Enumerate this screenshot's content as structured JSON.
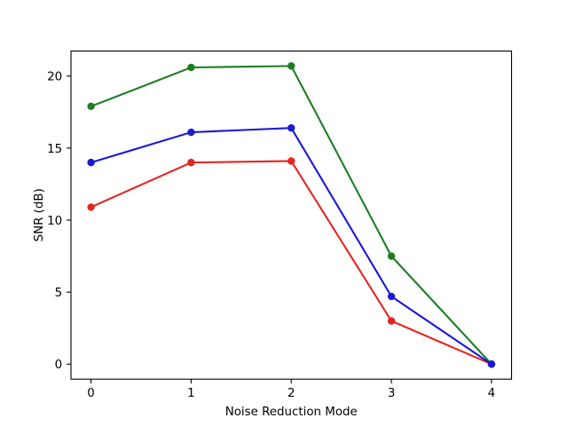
{
  "figure": {
    "background": "#ffffff"
  },
  "chart_data": {
    "type": "line",
    "title": "",
    "xlabel": "Noise Reduction Mode",
    "ylabel": "SNR (dB)",
    "x": [
      0,
      1,
      2,
      3,
      4
    ],
    "x_tick_labels": [
      "0",
      "1",
      "2",
      "3",
      "4"
    ],
    "y_ticks": [
      0,
      5,
      10,
      15,
      20
    ],
    "y_tick_labels": [
      "0",
      "5",
      "10",
      "15",
      "20"
    ],
    "xlim": [
      -0.2,
      4.2
    ],
    "ylim": [
      -1.04,
      21.74
    ],
    "grid": false,
    "legend": "none",
    "marker": "circle",
    "series": [
      {
        "name": "red-series",
        "color": "#e42521",
        "values": [
          10.9,
          14.0,
          14.1,
          3.0,
          0.0
        ]
      },
      {
        "name": "green-series",
        "color": "#1c7e23",
        "values": [
          17.9,
          20.6,
          20.7,
          7.5,
          0.0
        ]
      },
      {
        "name": "blue-series",
        "color": "#1919d7",
        "values": [
          14.0,
          16.1,
          16.4,
          4.7,
          0.0
        ]
      }
    ],
    "axis_color": "#000000",
    "text_color": "#000000",
    "background": "#ffffff"
  }
}
